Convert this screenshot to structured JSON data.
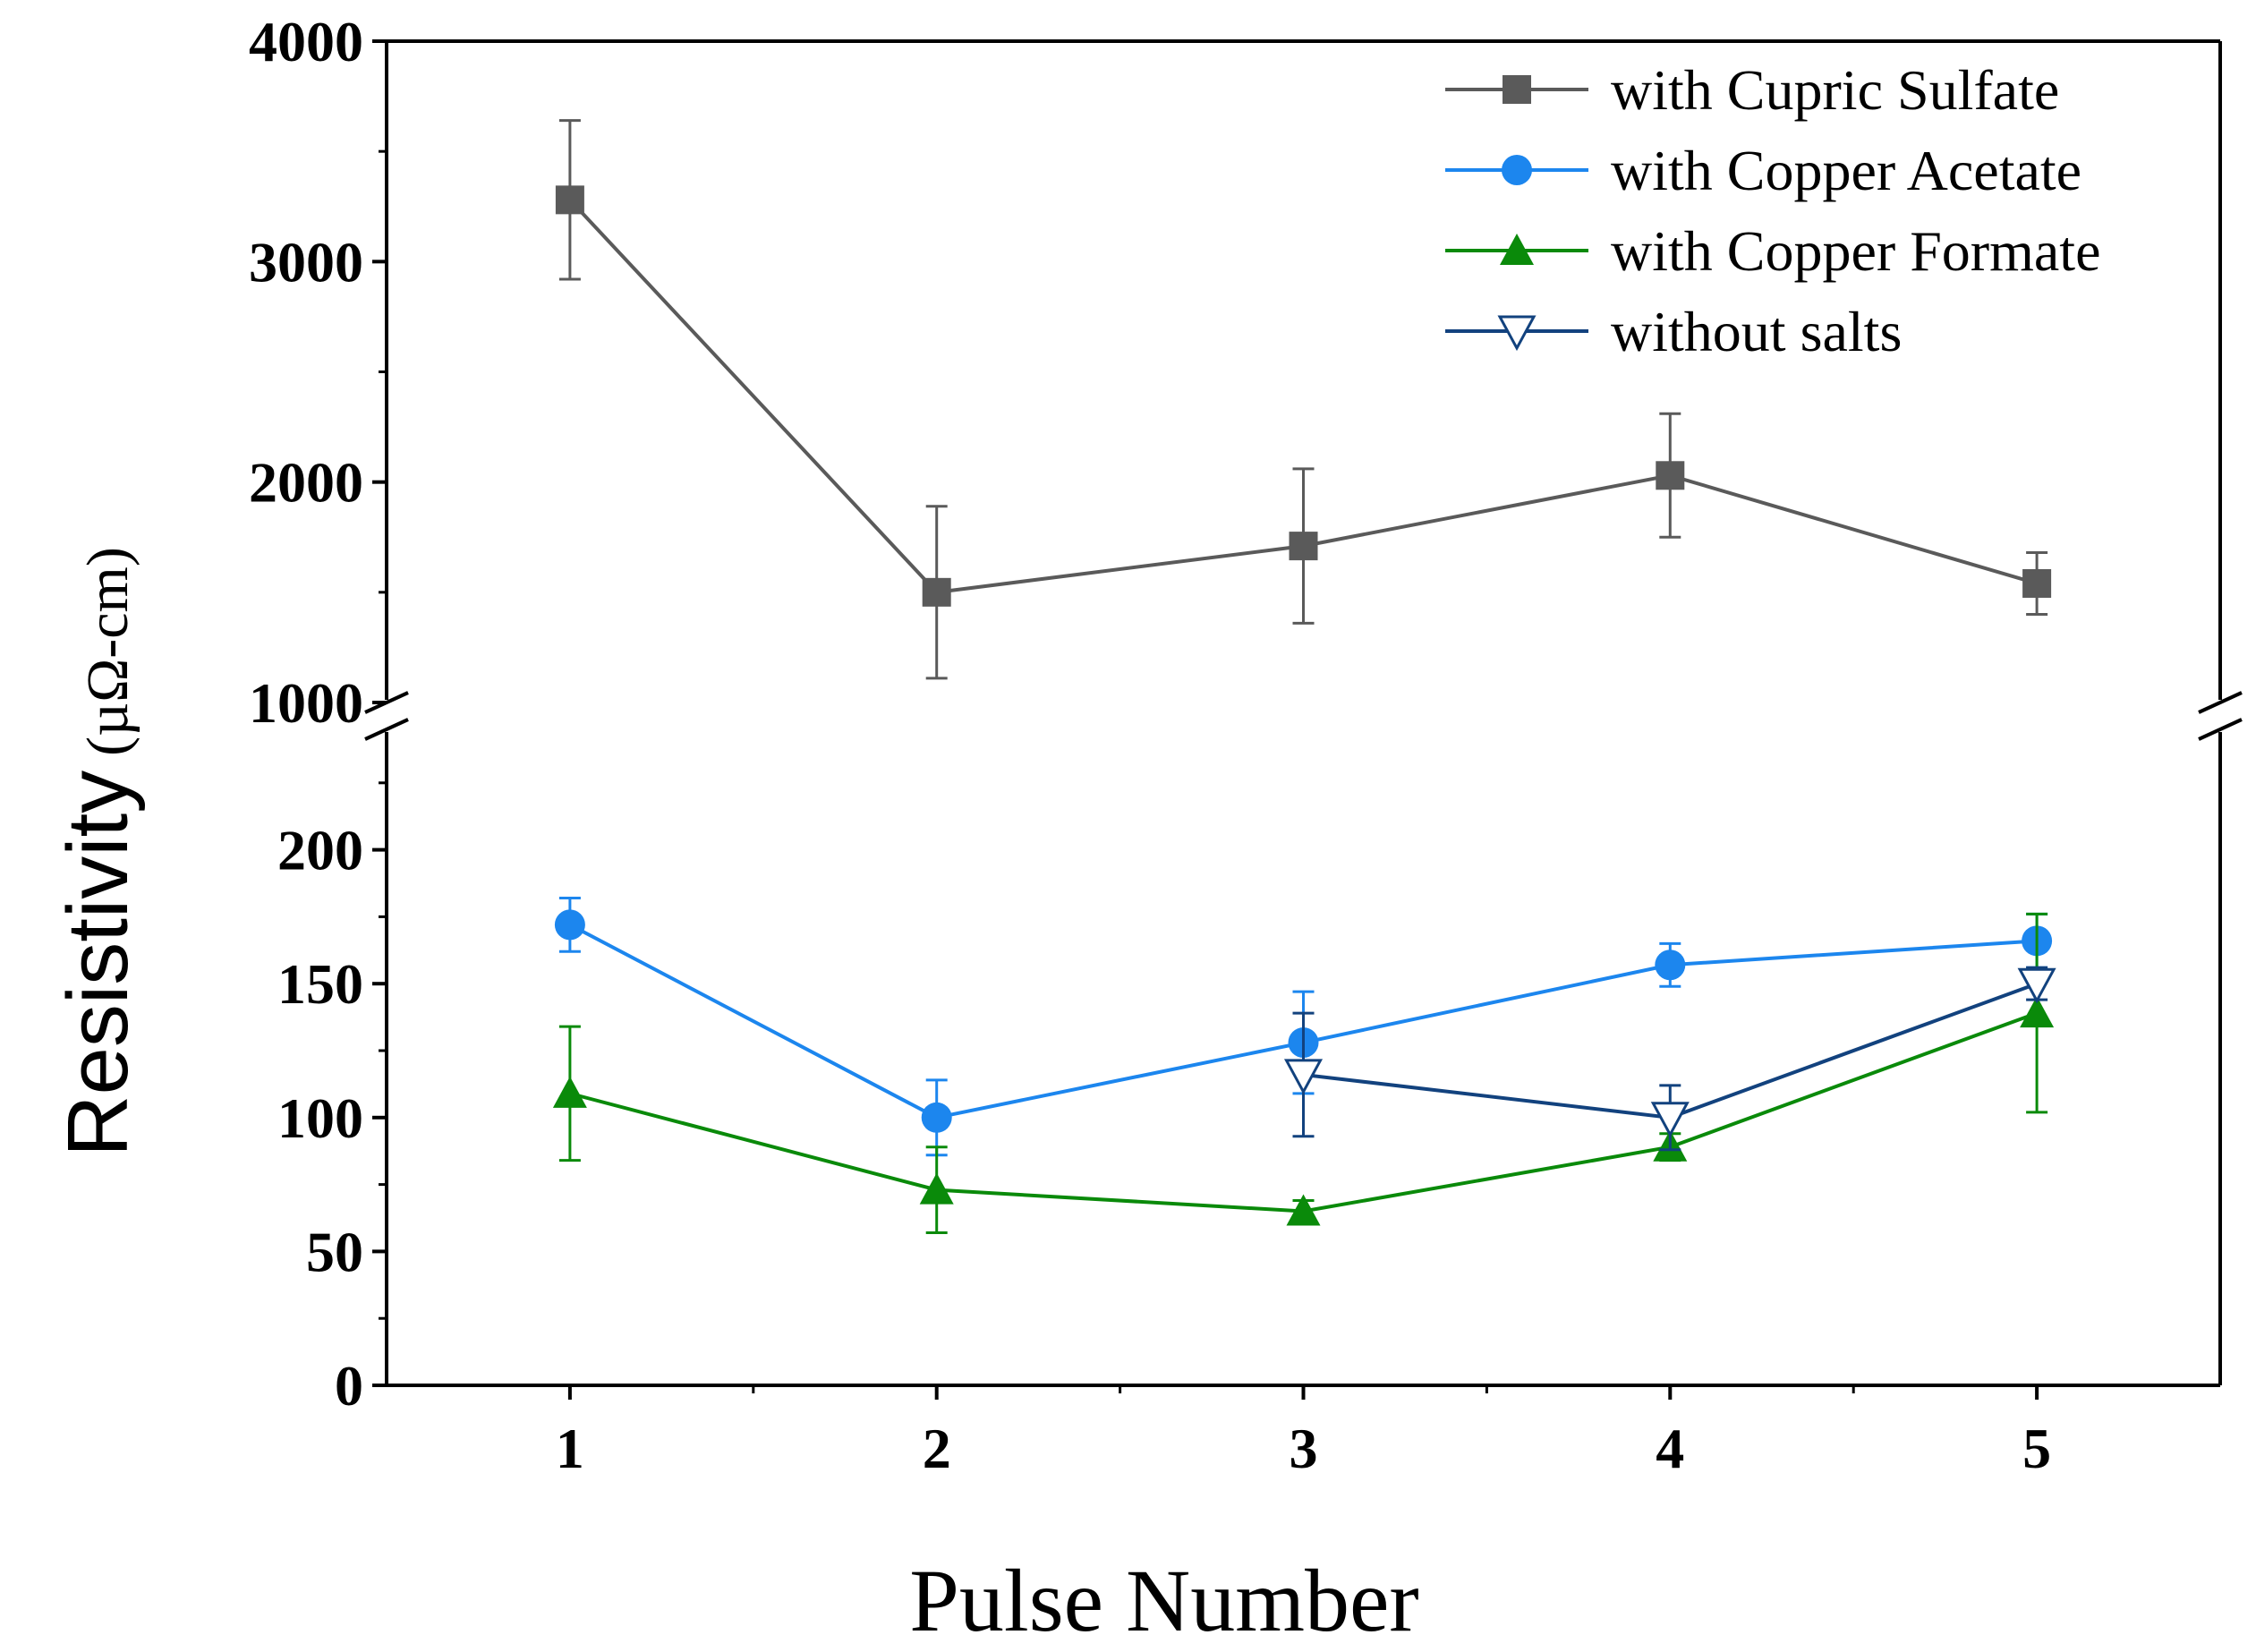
{
  "chart_data": {
    "type": "line",
    "title": "",
    "xlabel": "Pulse Number",
    "ylabel": {
      "main": "Resistivity",
      "unit": "(µΩ-cm)"
    },
    "x": [
      1,
      2,
      3,
      4,
      5
    ],
    "xlim": [
      0.5,
      5.5
    ],
    "y_axis_break": {
      "lower_range": [
        0,
        250
      ],
      "upper_range": [
        1000,
        4000
      ],
      "lower_ticks": [
        "0",
        "50",
        "100",
        "150",
        "200"
      ],
      "upper_ticks": [
        "1000",
        "2000",
        "3000",
        "4000"
      ]
    },
    "x_ticks": [
      "1",
      "2",
      "3",
      "4",
      "5"
    ],
    "legend_position": "top-right",
    "series": [
      {
        "name": "with Cupric Sulfate",
        "color": "#5a5a5a",
        "marker": "square",
        "segment": "upper",
        "x": [
          1,
          2,
          3,
          4,
          5
        ],
        "values": [
          3280,
          1500,
          1710,
          2030,
          1540
        ],
        "errors": [
          360,
          390,
          350,
          280,
          140
        ]
      },
      {
        "name": "with Copper Acetate",
        "color": "#1c86ee",
        "marker": "circle",
        "segment": "lower",
        "x": [
          1,
          2,
          3,
          4,
          5
        ],
        "values": [
          172,
          100,
          128,
          157,
          166
        ],
        "errors": [
          10,
          14,
          19,
          8,
          10
        ]
      },
      {
        "name": "with Copper Formate",
        "color": "#0a8a0a",
        "marker": "triangle-up",
        "segment": "lower",
        "x": [
          1,
          2,
          3,
          4,
          5
        ],
        "values": [
          109,
          73,
          65,
          89,
          139
        ],
        "errors": [
          25,
          16,
          4,
          5,
          37
        ]
      },
      {
        "name": "without salts",
        "color": "#12427e",
        "marker": "triangle-down-open",
        "segment": "lower",
        "x": [
          3,
          4,
          5
        ],
        "values": [
          116,
          100,
          150
        ],
        "errors": [
          23,
          12,
          6
        ]
      }
    ]
  }
}
